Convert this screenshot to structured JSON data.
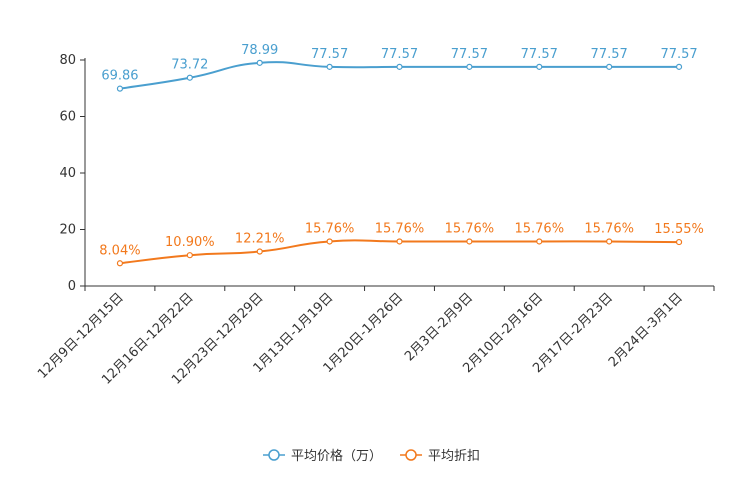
{
  "chart_data": {
    "type": "line",
    "categories": [
      "12月9日-12月15日",
      "12月16日-12月22日",
      "12月23日-12月29日",
      "1月13日-1月19日",
      "1月20日-1月26日",
      "2月3日-2月9日",
      "2月10日-2月16日",
      "2月17日-2月23日",
      "2月24日-3月1日"
    ],
    "ylim": [
      0,
      80
    ],
    "yticks": [
      0,
      20,
      40,
      60,
      80
    ],
    "series": [
      {
        "name": "平均价格（万）",
        "color": "#4a9fcf",
        "values": [
          69.86,
          73.72,
          78.99,
          77.57,
          77.57,
          77.57,
          77.57,
          77.57,
          77.57
        ],
        "labels": [
          "69.86",
          "73.72",
          "78.99",
          "77.57",
          "77.57",
          "77.57",
          "77.57",
          "77.57",
          "77.57"
        ]
      },
      {
        "name": "平均折扣",
        "color": "#f2791d",
        "values": [
          8.04,
          10.9,
          12.21,
          15.76,
          15.76,
          15.76,
          15.76,
          15.76,
          15.55
        ],
        "labels": [
          "8.04%",
          "10.90%",
          "12.21%",
          "15.76%",
          "15.76%",
          "15.76%",
          "15.76%",
          "15.76%",
          "15.55%"
        ]
      }
    ],
    "legend_position": "bottom-center"
  }
}
